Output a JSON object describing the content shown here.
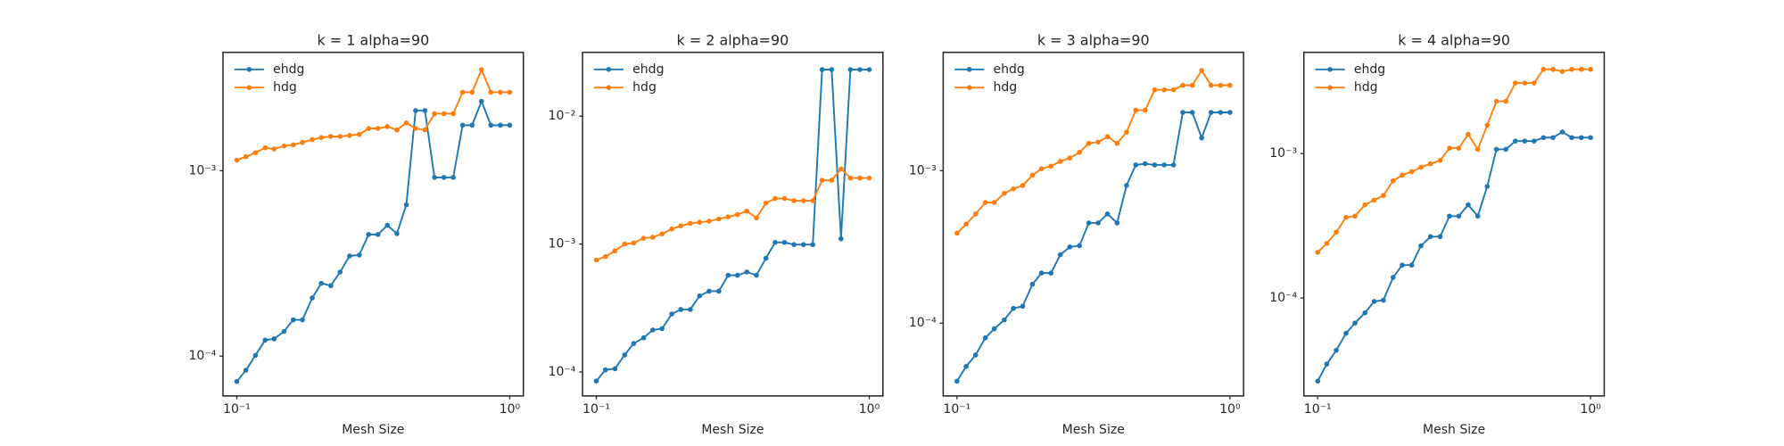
{
  "chart_data": [
    {
      "type": "line",
      "title": "k = 1 alpha=90",
      "xlabel": "Mesh Size",
      "xscale": "log",
      "yscale": "log",
      "legend": "upper left",
      "x": [
        0.1,
        0.108,
        0.117,
        0.127,
        0.137,
        0.149,
        0.161,
        0.174,
        0.189,
        0.204,
        0.221,
        0.239,
        0.259,
        0.281,
        0.304,
        0.329,
        0.356,
        0.386,
        0.418,
        0.452,
        0.489,
        0.53,
        0.574,
        0.621,
        0.672,
        0.728,
        0.788,
        0.853,
        0.924,
        1.0
      ],
      "series": [
        {
          "name": "ehdg",
          "color": "#1f77b4",
          "values": [
            7.3e-05,
            8.4e-05,
            0.000101,
            0.000122,
            0.000124,
            0.000136,
            0.000157,
            0.000157,
            0.000206,
            0.000247,
            0.00024,
            0.000284,
            0.000347,
            0.000351,
            0.000453,
            0.000453,
            0.000508,
            0.000458,
            0.000655,
            0.00211,
            0.00211,
            0.00092,
            0.00092,
            0.00092,
            0.00176,
            0.00176,
            0.00237,
            0.00176,
            0.00176,
            0.00176
          ]
        },
        {
          "name": "hdg",
          "color": "#ff7f0e",
          "values": [
            0.00114,
            0.00119,
            0.00125,
            0.00133,
            0.00131,
            0.00136,
            0.00138,
            0.00142,
            0.00147,
            0.00151,
            0.00153,
            0.00153,
            0.00155,
            0.00157,
            0.00169,
            0.00169,
            0.00173,
            0.00166,
            0.00181,
            0.00169,
            0.00166,
            0.00203,
            0.00203,
            0.00203,
            0.00265,
            0.00265,
            0.00351,
            0.00265,
            0.00265,
            0.00265
          ]
        }
      ],
      "xlim": [
        0.089,
        1.122
      ],
      "ylim": [
        6.1e-05,
        0.00435
      ],
      "xticks": [
        {
          "value": 0.1,
          "label": "10⁻¹"
        },
        {
          "value": 1,
          "label": "10⁰"
        }
      ],
      "yticks": [
        {
          "value": 0.0001,
          "label": "10⁻⁴"
        },
        {
          "value": 0.001,
          "label": "10⁻³"
        }
      ]
    },
    {
      "type": "line",
      "title": "k = 2 alpha=90",
      "xlabel": "Mesh Size",
      "xscale": "log",
      "yscale": "log",
      "legend": "upper left",
      "x": [
        0.1,
        0.108,
        0.117,
        0.127,
        0.137,
        0.149,
        0.161,
        0.174,
        0.189,
        0.204,
        0.221,
        0.239,
        0.259,
        0.281,
        0.304,
        0.329,
        0.356,
        0.386,
        0.418,
        0.452,
        0.489,
        0.53,
        0.574,
        0.621,
        0.672,
        0.728,
        0.788,
        0.853,
        0.924,
        1.0
      ],
      "series": [
        {
          "name": "ehdg",
          "color": "#1f77b4",
          "values": [
            8.5e-05,
            0.000104,
            0.000106,
            0.000136,
            0.000167,
            0.000185,
            0.000213,
            0.000218,
            0.000284,
            0.000308,
            0.000308,
            0.000394,
            0.000428,
            0.000428,
            0.00057,
            0.00057,
            0.000605,
            0.00057,
            0.000774,
            0.00103,
            0.00103,
            0.00099,
            0.00099,
            0.00099,
            0.0231,
            0.0231,
            0.0011,
            0.0231,
            0.0231,
            0.0231
          ]
        },
        {
          "name": "hdg",
          "color": "#ff7f0e",
          "values": [
            0.00075,
            0.000798,
            0.000885,
            0.001,
            0.00102,
            0.00111,
            0.00113,
            0.0012,
            0.00131,
            0.00139,
            0.00145,
            0.00148,
            0.00151,
            0.00157,
            0.00163,
            0.0017,
            0.00181,
            0.0016,
            0.00209,
            0.00227,
            0.00227,
            0.00218,
            0.00218,
            0.00218,
            0.00315,
            0.00315,
            0.00386,
            0.00328,
            0.00328,
            0.00328
          ]
        }
      ],
      "xlim": [
        0.089,
        1.122
      ],
      "ylim": [
        6.5e-05,
        0.0315
      ],
      "xticks": [
        {
          "value": 0.1,
          "label": "10⁻¹"
        },
        {
          "value": 1,
          "label": "10⁰"
        }
      ],
      "yticks": [
        {
          "value": 0.0001,
          "label": "10⁻⁴"
        },
        {
          "value": 0.001,
          "label": "10⁻³"
        },
        {
          "value": 0.01,
          "label": "10⁻²"
        }
      ]
    },
    {
      "type": "line",
      "title": "k = 3 alpha=90",
      "xlabel": "Mesh Size",
      "xscale": "log",
      "yscale": "log",
      "legend": "upper left",
      "x": [
        0.1,
        0.108,
        0.117,
        0.127,
        0.137,
        0.149,
        0.161,
        0.174,
        0.189,
        0.204,
        0.221,
        0.239,
        0.259,
        0.281,
        0.304,
        0.329,
        0.356,
        0.386,
        0.418,
        0.452,
        0.489,
        0.53,
        0.574,
        0.621,
        0.672,
        0.728,
        0.788,
        0.853,
        0.924,
        1.0
      ],
      "series": [
        {
          "name": "ehdg",
          "color": "#1f77b4",
          "values": [
            4.16e-05,
            5.2e-05,
            6.18e-05,
            8e-05,
            9.18e-05,
            0.000105,
            0.000125,
            0.000129,
            0.00018,
            0.000213,
            0.000213,
            0.000281,
            0.000316,
            0.000322,
            0.000454,
            0.000454,
            0.00052,
            0.000454,
            0.0008,
            0.00109,
            0.00111,
            0.00109,
            0.00109,
            0.00109,
            0.00241,
            0.00241,
            0.00164,
            0.00241,
            0.00241,
            0.00241
          ]
        },
        {
          "name": "hdg",
          "color": "#ff7f0e",
          "values": [
            0.000389,
            0.000446,
            0.00052,
            0.000618,
            0.000618,
            0.00071,
            0.00076,
            0.0008,
            0.000933,
            0.00103,
            0.00107,
            0.00115,
            0.00121,
            0.00132,
            0.00151,
            0.00154,
            0.00167,
            0.00151,
            0.00179,
            0.00249,
            0.00249,
            0.00339,
            0.00339,
            0.00339,
            0.00363,
            0.00363,
            0.00454,
            0.00363,
            0.00363,
            0.00363
          ]
        }
      ],
      "xlim": [
        0.089,
        1.122
      ],
      "ylim": [
        3.33e-05,
        0.00597
      ],
      "xticks": [
        {
          "value": 0.1,
          "label": "10⁻¹"
        },
        {
          "value": 1,
          "label": "10⁰"
        }
      ],
      "yticks": [
        {
          "value": 0.0001,
          "label": "10⁻⁴"
        },
        {
          "value": 0.001,
          "label": "10⁻³"
        }
      ]
    },
    {
      "type": "line",
      "title": "k = 4 alpha=90",
      "xlabel": "Mesh Size",
      "xscale": "log",
      "yscale": "log",
      "legend": "upper left",
      "x": [
        0.1,
        0.108,
        0.117,
        0.127,
        0.137,
        0.149,
        0.161,
        0.174,
        0.189,
        0.204,
        0.221,
        0.239,
        0.259,
        0.281,
        0.304,
        0.329,
        0.356,
        0.386,
        0.418,
        0.452,
        0.489,
        0.53,
        0.574,
        0.621,
        0.672,
        0.728,
        0.788,
        0.853,
        0.924,
        1.0
      ],
      "series": [
        {
          "name": "ehdg",
          "color": "#1f77b4",
          "values": [
            2.66e-05,
            3.49e-05,
            4.35e-05,
            5.7e-05,
            6.71e-05,
            7.9e-05,
            9.47e-05,
            9.65e-05,
            0.000139,
            0.000169,
            0.000169,
            0.00023,
            0.000266,
            0.000266,
            0.000369,
            0.000369,
            0.000442,
            0.000369,
            0.000592,
            0.00107,
            0.00107,
            0.00122,
            0.00122,
            0.00122,
            0.00129,
            0.00129,
            0.00141,
            0.00129,
            0.00129,
            0.00129
          ]
        },
        {
          "name": "hdg",
          "color": "#ff7f0e",
          "values": [
            0.000207,
            0.000239,
            0.000286,
            0.000362,
            0.000369,
            0.000442,
            0.000476,
            0.000512,
            0.000648,
            0.000709,
            0.000748,
            0.000805,
            0.000849,
            0.000897,
            0.00109,
            0.00109,
            0.00136,
            0.00107,
            0.00157,
            0.0023,
            0.0023,
            0.00308,
            0.00308,
            0.00308,
            0.00383,
            0.00383,
            0.0037,
            0.00383,
            0.00383,
            0.00383
          ]
        }
      ],
      "xlim": [
        0.089,
        1.122
      ],
      "ylim": [
        2.1e-05,
        0.00502
      ],
      "xticks": [
        {
          "value": 0.1,
          "label": "10⁻¹"
        },
        {
          "value": 1,
          "label": "10⁰"
        }
      ],
      "yticks": [
        {
          "value": 0.0001,
          "label": "10⁻⁴"
        },
        {
          "value": 0.001,
          "label": "10⁻³"
        }
      ]
    }
  ]
}
